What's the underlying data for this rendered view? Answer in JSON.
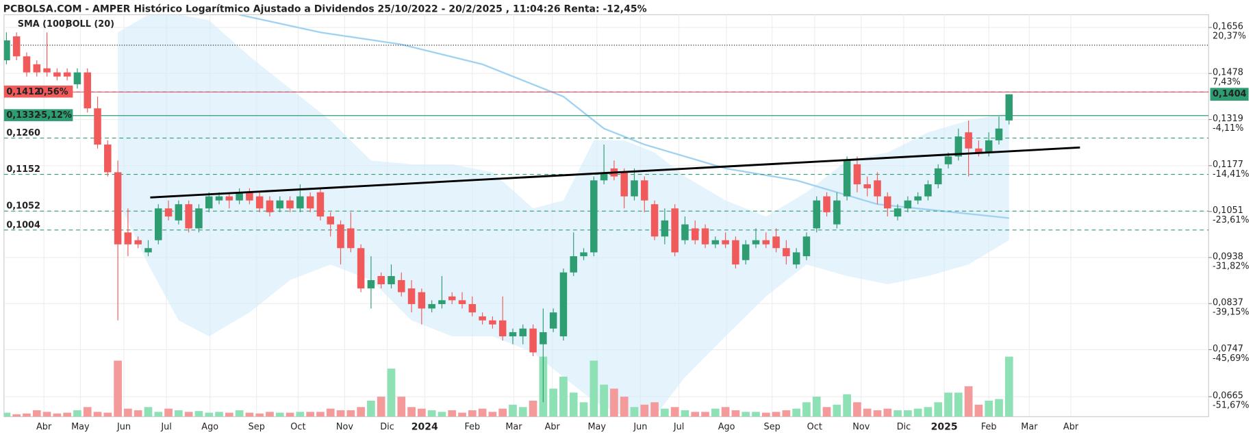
{
  "chart_data": {
    "type": "candlestick",
    "title": "PCBOLSA.COM - AMPER Histórico Logarítmico Ajustado a Dividendos 25/10/2022 - 20/2/2025 , 11:04:26 Renta: -12,45%",
    "legend": [
      {
        "name": "SMA (100)",
        "color": "#9fd2f2"
      },
      {
        "name": "BOLL (20)",
        "color": "#d6d6d6"
      }
    ],
    "log_scale": true,
    "grid": true,
    "up_color": "#2e9d72",
    "down_color": "#f05a5a",
    "xlim": [
      -0.24,
      118.7
    ],
    "xticks": [
      {
        "value": 3.7,
        "label": "Abr"
      },
      {
        "value": 7.3,
        "label": "May"
      },
      {
        "value": 11.6,
        "label": "Jun"
      },
      {
        "value": 15.8,
        "label": "Jul"
      },
      {
        "value": 20.1,
        "label": "Ago"
      },
      {
        "value": 24.7,
        "label": "Sep"
      },
      {
        "value": 28.8,
        "label": "Oct"
      },
      {
        "value": 33.4,
        "label": "Nov"
      },
      {
        "value": 37.6,
        "label": "Dic"
      },
      {
        "value": 41.3,
        "label": "2024",
        "bold": true
      },
      {
        "value": 46,
        "label": "Feb"
      },
      {
        "value": 50.1,
        "label": "Mar"
      },
      {
        "value": 53.9,
        "label": "Abr"
      },
      {
        "value": 58.3,
        "label": "May"
      },
      {
        "value": 62.6,
        "label": "Jun"
      },
      {
        "value": 66.4,
        "label": "Jul"
      },
      {
        "value": 71.1,
        "label": "Ago"
      },
      {
        "value": 75.6,
        "label": "Sep"
      },
      {
        "value": 79.8,
        "label": "Oct"
      },
      {
        "value": 84.4,
        "label": "Nov"
      },
      {
        "value": 88.6,
        "label": "Dic"
      },
      {
        "value": 92.6,
        "label": "2025",
        "bold": true
      },
      {
        "value": 97,
        "label": "Feb"
      },
      {
        "value": 101,
        "label": "Mar"
      },
      {
        "value": 105.1,
        "label": "Abr"
      }
    ],
    "ylim": [
      0.0633,
      0.1709
    ],
    "yticks": [
      {
        "value": 0.1656,
        "label": "0,1656"
      },
      {
        "value": 0.1478,
        "label": "0,1478"
      },
      {
        "value": 0.1319,
        "label": "0,1319"
      },
      {
        "value": 0.1177,
        "label": "0,1177"
      },
      {
        "value": 0.1051,
        "label": "0,1051"
      },
      {
        "value": 0.0938,
        "label": "0,0938"
      },
      {
        "value": 0.0837,
        "label": "0,0837"
      },
      {
        "value": 0.0747,
        "label": "0,0747"
      },
      {
        "value": 0.0665,
        "label": "0,0665"
      }
    ],
    "yticks_pct": [
      {
        "value": 0.1656,
        "label": "20,37%"
      },
      {
        "value": 0.1478,
        "label": "7,43%"
      },
      {
        "value": 0.1319,
        "label": "-4,11%"
      },
      {
        "value": 0.1177,
        "label": "-14,41%"
      },
      {
        "value": 0.1051,
        "label": "-23,61%"
      },
      {
        "value": 0.0938,
        "label": "-31,82%"
      },
      {
        "value": 0.0837,
        "label": "-39,15%"
      },
      {
        "value": 0.0747,
        "label": "-45,69%"
      },
      {
        "value": 0.0665,
        "label": "-51,67%"
      }
    ],
    "ohlc": [
      [
        0.1527,
        0.1636,
        0.1512,
        0.1604
      ],
      [
        0.162,
        0.1636,
        0.1527,
        0.1542
      ],
      [
        0.1542,
        0.1557,
        0.1467,
        0.1482
      ],
      [
        0.1512,
        0.1527,
        0.1467,
        0.1482
      ],
      [
        0.1497,
        0.1636,
        0.1467,
        0.1482
      ],
      [
        0.1482,
        0.1497,
        0.1453,
        0.1467
      ],
      [
        0.1482,
        0.1497,
        0.1453,
        0.1467
      ],
      [
        0.1439,
        0.1497,
        0.1424,
        0.1482
      ],
      [
        0.1482,
        0.1497,
        0.1342,
        0.1356
      ],
      [
        0.1356,
        0.1396,
        0.1228,
        0.124
      ],
      [
        0.124,
        0.1253,
        0.1146,
        0.1158
      ],
      [
        0.1158,
        0.1192,
        0.0803,
        0.0969
      ],
      [
        0.0998,
        0.1059,
        0.0941,
        0.0969
      ],
      [
        0.0979,
        0.0988,
        0.096,
        0.0969
      ],
      [
        0.095,
        0.0979,
        0.0941,
        0.096
      ],
      [
        0.0979,
        0.107,
        0.0969,
        0.1059
      ],
      [
        0.1059,
        0.108,
        0.1028,
        0.1038
      ],
      [
        0.1028,
        0.108,
        0.1018,
        0.107
      ],
      [
        0.107,
        0.108,
        0.0998,
        0.1008
      ],
      [
        0.1008,
        0.107,
        0.0998,
        0.1059
      ],
      [
        0.1059,
        0.1102,
        0.1049,
        0.1091
      ],
      [
        0.108,
        0.1102,
        0.107,
        0.1091
      ],
      [
        0.1091,
        0.1102,
        0.1059,
        0.108
      ],
      [
        0.108,
        0.1113,
        0.107,
        0.1102
      ],
      [
        0.1102,
        0.1113,
        0.107,
        0.108
      ],
      [
        0.1091,
        0.1102,
        0.1049,
        0.1059
      ],
      [
        0.108,
        0.1091,
        0.1038,
        0.1049
      ],
      [
        0.1059,
        0.1091,
        0.1049,
        0.108
      ],
      [
        0.108,
        0.1091,
        0.1049,
        0.1059
      ],
      [
        0.1059,
        0.1124,
        0.1049,
        0.1091
      ],
      [
        0.1091,
        0.1102,
        0.1049,
        0.1059
      ],
      [
        0.1102,
        0.1113,
        0.1028,
        0.1038
      ],
      [
        0.1038,
        0.1049,
        0.0988,
        0.1018
      ],
      [
        0.1018,
        0.1028,
        0.0922,
        0.096
      ],
      [
        0.1008,
        0.1049,
        0.095,
        0.096
      ],
      [
        0.096,
        0.0969,
        0.0861,
        0.0869
      ],
      [
        0.0869,
        0.0941,
        0.0827,
        0.0887
      ],
      [
        0.0896,
        0.0904,
        0.0869,
        0.0878
      ],
      [
        0.0878,
        0.0922,
        0.0869,
        0.0896
      ],
      [
        0.0887,
        0.0904,
        0.0852,
        0.0861
      ],
      [
        0.0869,
        0.0887,
        0.0819,
        0.0836
      ],
      [
        0.0861,
        0.0869,
        0.0795,
        0.0827
      ],
      [
        0.0827,
        0.0844,
        0.0819,
        0.0836
      ],
      [
        0.0836,
        0.0896,
        0.0827,
        0.0844
      ],
      [
        0.0852,
        0.0861,
        0.0836,
        0.0844
      ],
      [
        0.0844,
        0.0861,
        0.0827,
        0.0836
      ],
      [
        0.0836,
        0.0852,
        0.0811,
        0.0819
      ],
      [
        0.0811,
        0.0819,
        0.0795,
        0.0803
      ],
      [
        0.0803,
        0.0811,
        0.0787,
        0.0795
      ],
      [
        0.0803,
        0.0852,
        0.0764,
        0.0772
      ],
      [
        0.0772,
        0.0787,
        0.0757,
        0.078
      ],
      [
        0.0772,
        0.0795,
        0.0757,
        0.0787
      ],
      [
        0.0787,
        0.0795,
        0.0735,
        0.0742
      ],
      [
        0.0757,
        0.0827,
        0.0656,
        0.078
      ],
      [
        0.0787,
        0.0827,
        0.078,
        0.0819
      ],
      [
        0.0772,
        0.0913,
        0.0764,
        0.0904
      ],
      [
        0.0904,
        0.0998,
        0.0896,
        0.0941
      ],
      [
        0.0941,
        0.096,
        0.0932,
        0.095
      ],
      [
        0.095,
        0.1146,
        0.0941,
        0.1135
      ],
      [
        0.1135,
        0.124,
        0.1124,
        0.1158
      ],
      [
        0.1169,
        0.1192,
        0.1135,
        0.1146
      ],
      [
        0.1158,
        0.1169,
        0.1059,
        0.1091
      ],
      [
        0.1091,
        0.1169,
        0.108,
        0.1135
      ],
      [
        0.1135,
        0.1146,
        0.1049,
        0.108
      ],
      [
        0.107,
        0.108,
        0.0979,
        0.0988
      ],
      [
        0.0988,
        0.1059,
        0.0969,
        0.1028
      ],
      [
        0.1059,
        0.107,
        0.0941,
        0.095
      ],
      [
        0.0979,
        0.1038,
        0.0969,
        0.1018
      ],
      [
        0.1008,
        0.1028,
        0.0969,
        0.0979
      ],
      [
        0.1008,
        0.1018,
        0.096,
        0.0969
      ],
      [
        0.0969,
        0.0988,
        0.096,
        0.0979
      ],
      [
        0.0979,
        0.0998,
        0.096,
        0.0969
      ],
      [
        0.0979,
        0.0988,
        0.0913,
        0.0922
      ],
      [
        0.0932,
        0.0979,
        0.0922,
        0.0969
      ],
      [
        0.0969,
        0.1008,
        0.096,
        0.0979
      ],
      [
        0.0979,
        0.0998,
        0.096,
        0.0969
      ],
      [
        0.0988,
        0.1008,
        0.095,
        0.096
      ],
      [
        0.096,
        0.0979,
        0.0922,
        0.0941
      ],
      [
        0.0922,
        0.096,
        0.0913,
        0.095
      ],
      [
        0.0941,
        0.0998,
        0.0932,
        0.0988
      ],
      [
        0.1008,
        0.1091,
        0.0998,
        0.108
      ],
      [
        0.1091,
        0.1102,
        0.1038,
        0.1049
      ],
      [
        0.1018,
        0.1102,
        0.1008,
        0.108
      ],
      [
        0.1091,
        0.1204,
        0.108,
        0.1192
      ],
      [
        0.1181,
        0.1204,
        0.1102,
        0.1124
      ],
      [
        0.1124,
        0.1146,
        0.1091,
        0.1113
      ],
      [
        0.1135,
        0.1158,
        0.107,
        0.1091
      ],
      [
        0.1091,
        0.1102,
        0.1038,
        0.1059
      ],
      [
        0.1038,
        0.107,
        0.1028,
        0.1059
      ],
      [
        0.1059,
        0.1091,
        0.1049,
        0.108
      ],
      [
        0.108,
        0.1102,
        0.107,
        0.1091
      ],
      [
        0.1091,
        0.1135,
        0.108,
        0.1124
      ],
      [
        0.1124,
        0.1181,
        0.1113,
        0.1169
      ],
      [
        0.1181,
        0.1216,
        0.1169,
        0.1204
      ],
      [
        0.1204,
        0.129,
        0.1192,
        0.1265
      ],
      [
        0.1278,
        0.1316,
        0.1146,
        0.1228
      ],
      [
        0.1228,
        0.1253,
        0.1204,
        0.1216
      ],
      [
        0.1216,
        0.1278,
        0.1204,
        0.1253
      ],
      [
        0.1253,
        0.1329,
        0.124,
        0.129
      ],
      [
        0.1316,
        0.1404,
        0.1303,
        0.1404
      ]
    ],
    "volume": {
      "ylim": [
        0,
        80
      ],
      "up_color": "#8ee0b5",
      "down_color": "#f59a9a",
      "values": [
        5,
        3,
        4,
        8,
        6,
        4,
        5,
        8,
        12,
        6,
        5,
        70,
        10,
        8,
        12,
        6,
        10,
        8,
        6,
        7,
        5,
        6,
        5,
        8,
        5,
        4,
        6,
        5,
        5,
        6,
        6,
        6,
        10,
        8,
        8,
        12,
        20,
        25,
        60,
        25,
        12,
        10,
        8,
        6,
        8,
        5,
        8,
        10,
        6,
        10,
        15,
        12,
        20,
        75,
        35,
        50,
        30,
        18,
        70,
        40,
        35,
        25,
        12,
        15,
        18,
        10,
        12,
        8,
        6,
        6,
        10,
        12,
        8,
        6,
        6,
        5,
        6,
        8,
        10,
        18,
        25,
        12,
        15,
        28,
        18,
        10,
        8,
        10,
        8,
        8,
        10,
        12,
        18,
        30,
        30,
        38,
        15,
        20,
        22,
        75
      ]
    },
    "bollinger": {
      "color": "#d3ebfa",
      "x": [
        11,
        14,
        17,
        20,
        24,
        28,
        32,
        36,
        40,
        44,
        48,
        52,
        55,
        58,
        61,
        64,
        67,
        71,
        75,
        79,
        83,
        87,
        91,
        95,
        99
      ],
      "upper": [
        0.1636,
        0.1709,
        0.1709,
        0.1686,
        0.1542,
        0.1424,
        0.1316,
        0.1192,
        0.1181,
        0.1181,
        0.1158,
        0.1059,
        0.108,
        0.1253,
        0.1253,
        0.1216,
        0.1146,
        0.108,
        0.1038,
        0.1102,
        0.1192,
        0.1216,
        0.1278,
        0.1316,
        0.1342
      ],
      "lower": [
        0.108,
        0.0922,
        0.0803,
        0.0772,
        0.0819,
        0.0887,
        0.0922,
        0.0887,
        0.0803,
        0.0772,
        0.0772,
        0.0742,
        0.0698,
        0.0658,
        0.0633,
        0.0633,
        0.0698,
        0.0772,
        0.0852,
        0.0922,
        0.0896,
        0.0878,
        0.0896,
        0.0922,
        0.0979
      ]
    },
    "sma100": {
      "color": "#9fd2f2",
      "x": [
        23,
        31,
        39,
        47,
        55,
        59,
        63,
        71,
        78,
        86,
        99
      ],
      "values": [
        0.1709,
        0.1636,
        0.1588,
        0.1512,
        0.1396,
        0.129,
        0.124,
        0.1169,
        0.1135,
        0.107,
        0.1034
      ]
    },
    "trendline": {
      "color": "#000000",
      "x": [
        14.2,
        106
      ],
      "values": [
        0.1088,
        0.1231
      ]
    },
    "levels": [
      {
        "value": 0.1585,
        "style": "dotted",
        "color": "#222222"
      },
      {
        "value": 0.1412,
        "style": "dashed",
        "color": "#3344dd"
      },
      {
        "value": 0.1412,
        "style": "solid",
        "color": "#f05a5a",
        "label": "0,1412",
        "change": "0,56%",
        "box": true
      },
      {
        "value": 0.1332,
        "style": "solid",
        "color": "#2e9d72",
        "label": "0,1332",
        "change": "-5,12%",
        "box": true
      },
      {
        "value": 0.126,
        "style": "dashed",
        "color": "#2e9d72",
        "label": "0,1260"
      },
      {
        "value": 0.1152,
        "style": "dashed",
        "color": "#2e9d72",
        "label": "0,1152"
      },
      {
        "value": 0.1052,
        "style": "dashed",
        "color": "#2e9d72",
        "label": "0,1052"
      },
      {
        "value": 0.1004,
        "style": "dashed",
        "color": "#2e9d72",
        "label": "0,1004"
      }
    ],
    "last_price": {
      "value": 0.1404,
      "label": "0,1404",
      "color": "#2e9d72"
    }
  }
}
